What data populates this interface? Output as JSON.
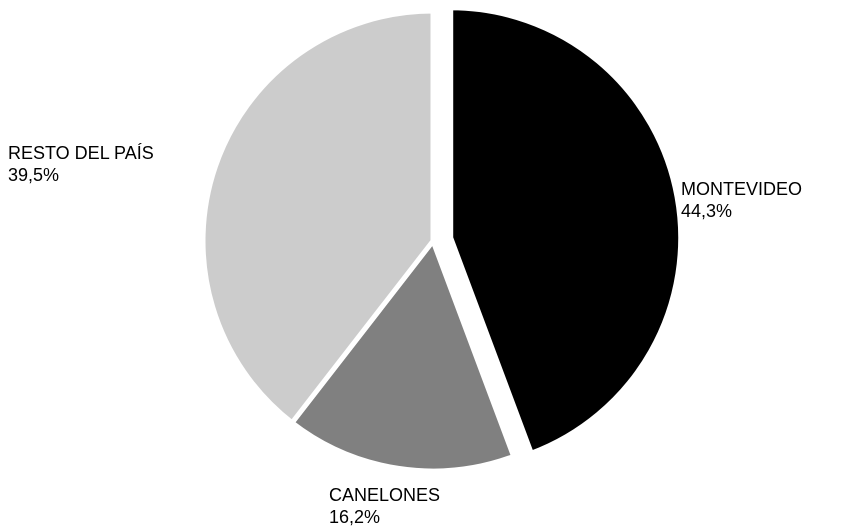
{
  "chart_data": {
    "type": "pie",
    "slices": [
      {
        "name": "MONTEVIDEO",
        "value": 44.3,
        "label": "44,3%",
        "color": "#000000",
        "exploded": true
      },
      {
        "name": "CANELONES",
        "value": 16.2,
        "label": "16,2%",
        "color": "#808080",
        "exploded": false
      },
      {
        "name": "RESTO DEL PAÍS",
        "value": 39.5,
        "label": "39,5%",
        "color": "#cccccc",
        "exploded": false
      }
    ],
    "start_angle_deg": 0,
    "direction": "clockwise",
    "legend": "none"
  }
}
